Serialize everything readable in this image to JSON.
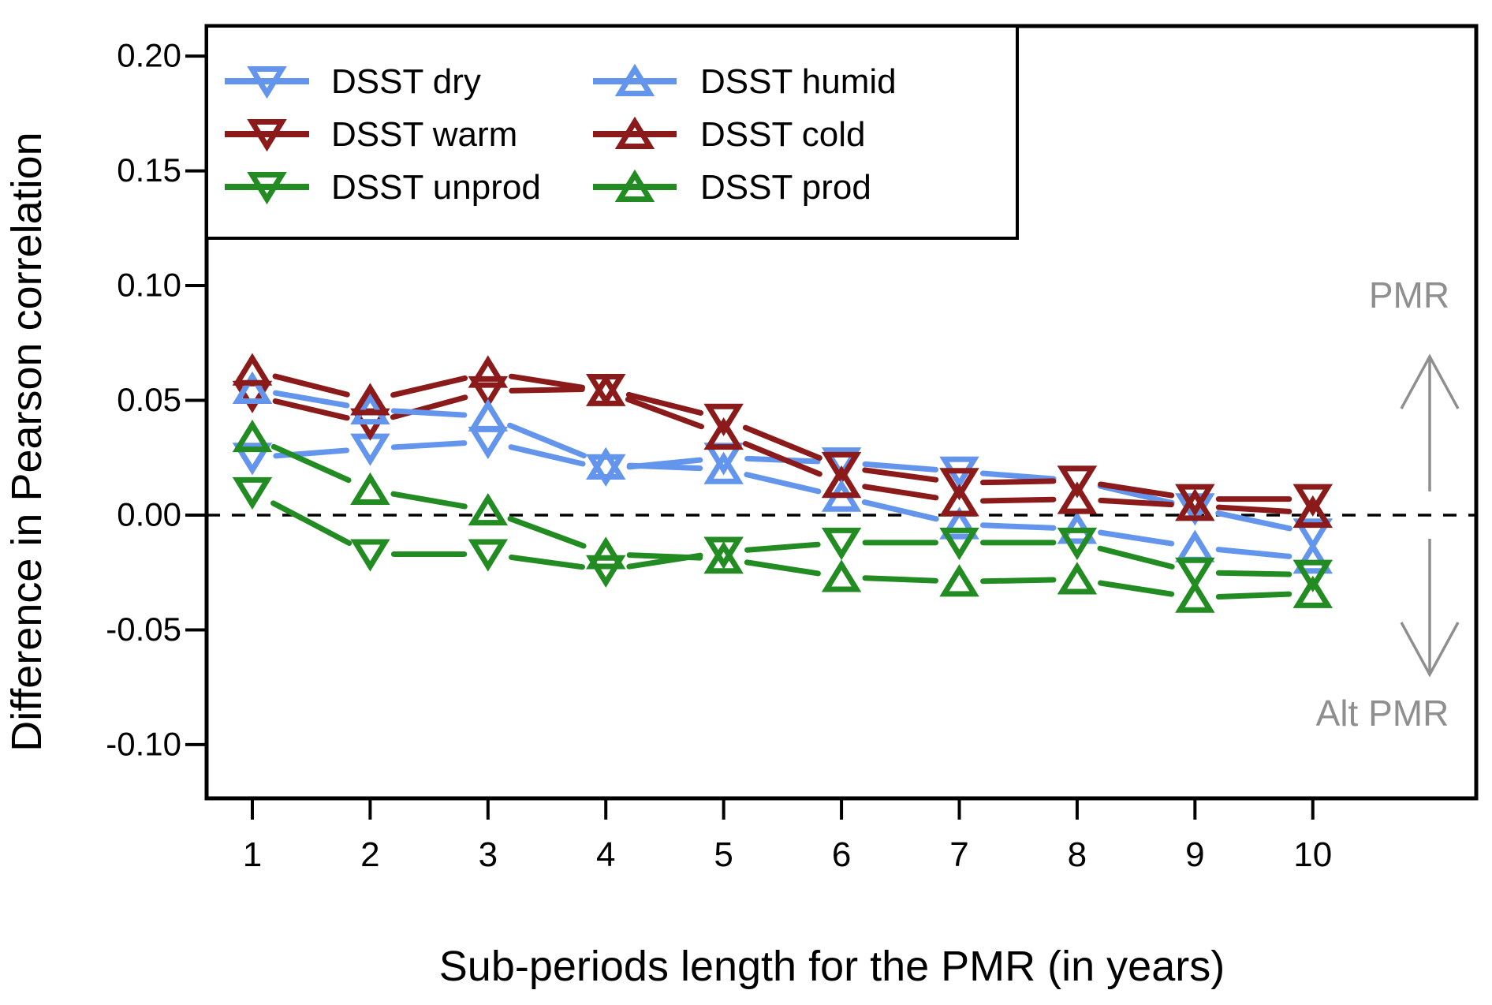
{
  "chart_data": {
    "type": "line",
    "title": "",
    "xlabel": "Sub-periods length for the PMR (in years)",
    "ylabel": "Difference in Pearson correlation",
    "x": [
      1,
      2,
      3,
      4,
      5,
      6,
      7,
      8,
      9,
      10
    ],
    "x_tick_labels": [
      "1",
      "2",
      "3",
      "4",
      "5",
      "6",
      "7",
      "8",
      "9",
      "10"
    ],
    "y_ticks": [
      0.2,
      0.15,
      0.1,
      0.05,
      0.0,
      -0.05,
      -0.1
    ],
    "y_tick_labels": [
      "0.20",
      "0.15",
      "0.10",
      "0.05",
      "0.00",
      "-0.05",
      "-0.10"
    ],
    "xlim": [
      0.612,
      11.387
    ],
    "ylim": [
      -0.1234,
      0.2131
    ],
    "grid": false,
    "reference_line": {
      "y": 0.0,
      "style": "dashed",
      "color": "#000000"
    },
    "colors": {
      "blue": "#6495ED",
      "darkred": "#8B1A1A",
      "green": "#228B22",
      "gray": "#8f8f8f",
      "black": "#000000"
    },
    "series": [
      {
        "name": "DSST dry",
        "color": "#6495ED",
        "marker": "triangle-down",
        "values": [
          0.025,
          0.029,
          0.032,
          0.02,
          0.025,
          0.023,
          0.019,
          0.015,
          0.003,
          -0.008
        ]
      },
      {
        "name": "DSST warm",
        "color": "#8B1A1A",
        "marker": "triangle-down",
        "values": [
          0.052,
          0.04,
          0.054,
          0.055,
          0.042,
          0.021,
          0.014,
          0.015,
          0.007,
          0.007
        ]
      },
      {
        "name": "DSST humid",
        "color": "#6495ED",
        "marker": "triangle-up",
        "values": [
          0.055,
          0.046,
          0.043,
          0.022,
          0.02,
          0.008,
          -0.004,
          -0.006,
          -0.014,
          -0.019
        ]
      },
      {
        "name": "DSST cold",
        "color": "#8B1A1A",
        "marker": "triangle-up",
        "values": [
          0.063,
          0.05,
          0.062,
          0.054,
          0.035,
          0.014,
          0.006,
          0.007,
          0.004,
          0.001
        ]
      },
      {
        "name": "DSST unprod",
        "color": "#228B22",
        "marker": "triangle-down",
        "values": [
          0.01,
          -0.017,
          -0.017,
          -0.024,
          -0.016,
          -0.012,
          -0.012,
          -0.012,
          -0.025,
          -0.026
        ]
      },
      {
        "name": "DSST prod",
        "color": "#228B22",
        "marker": "triangle-up",
        "values": [
          0.034,
          0.011,
          0.002,
          -0.017,
          -0.019,
          -0.027,
          -0.029,
          -0.028,
          -0.036,
          -0.034
        ]
      }
    ],
    "legend": {
      "position": "top-left",
      "columns": [
        [
          "DSST dry",
          "DSST warm",
          "DSST unprod"
        ],
        [
          "DSST humid",
          "DSST cold",
          "DSST prod"
        ]
      ]
    },
    "annotations": [
      {
        "text": "PMR",
        "color": "#8f8f8f",
        "arrow": "up"
      },
      {
        "text": "Alt PMR",
        "color": "#8f8f8f",
        "arrow": "down"
      }
    ]
  }
}
